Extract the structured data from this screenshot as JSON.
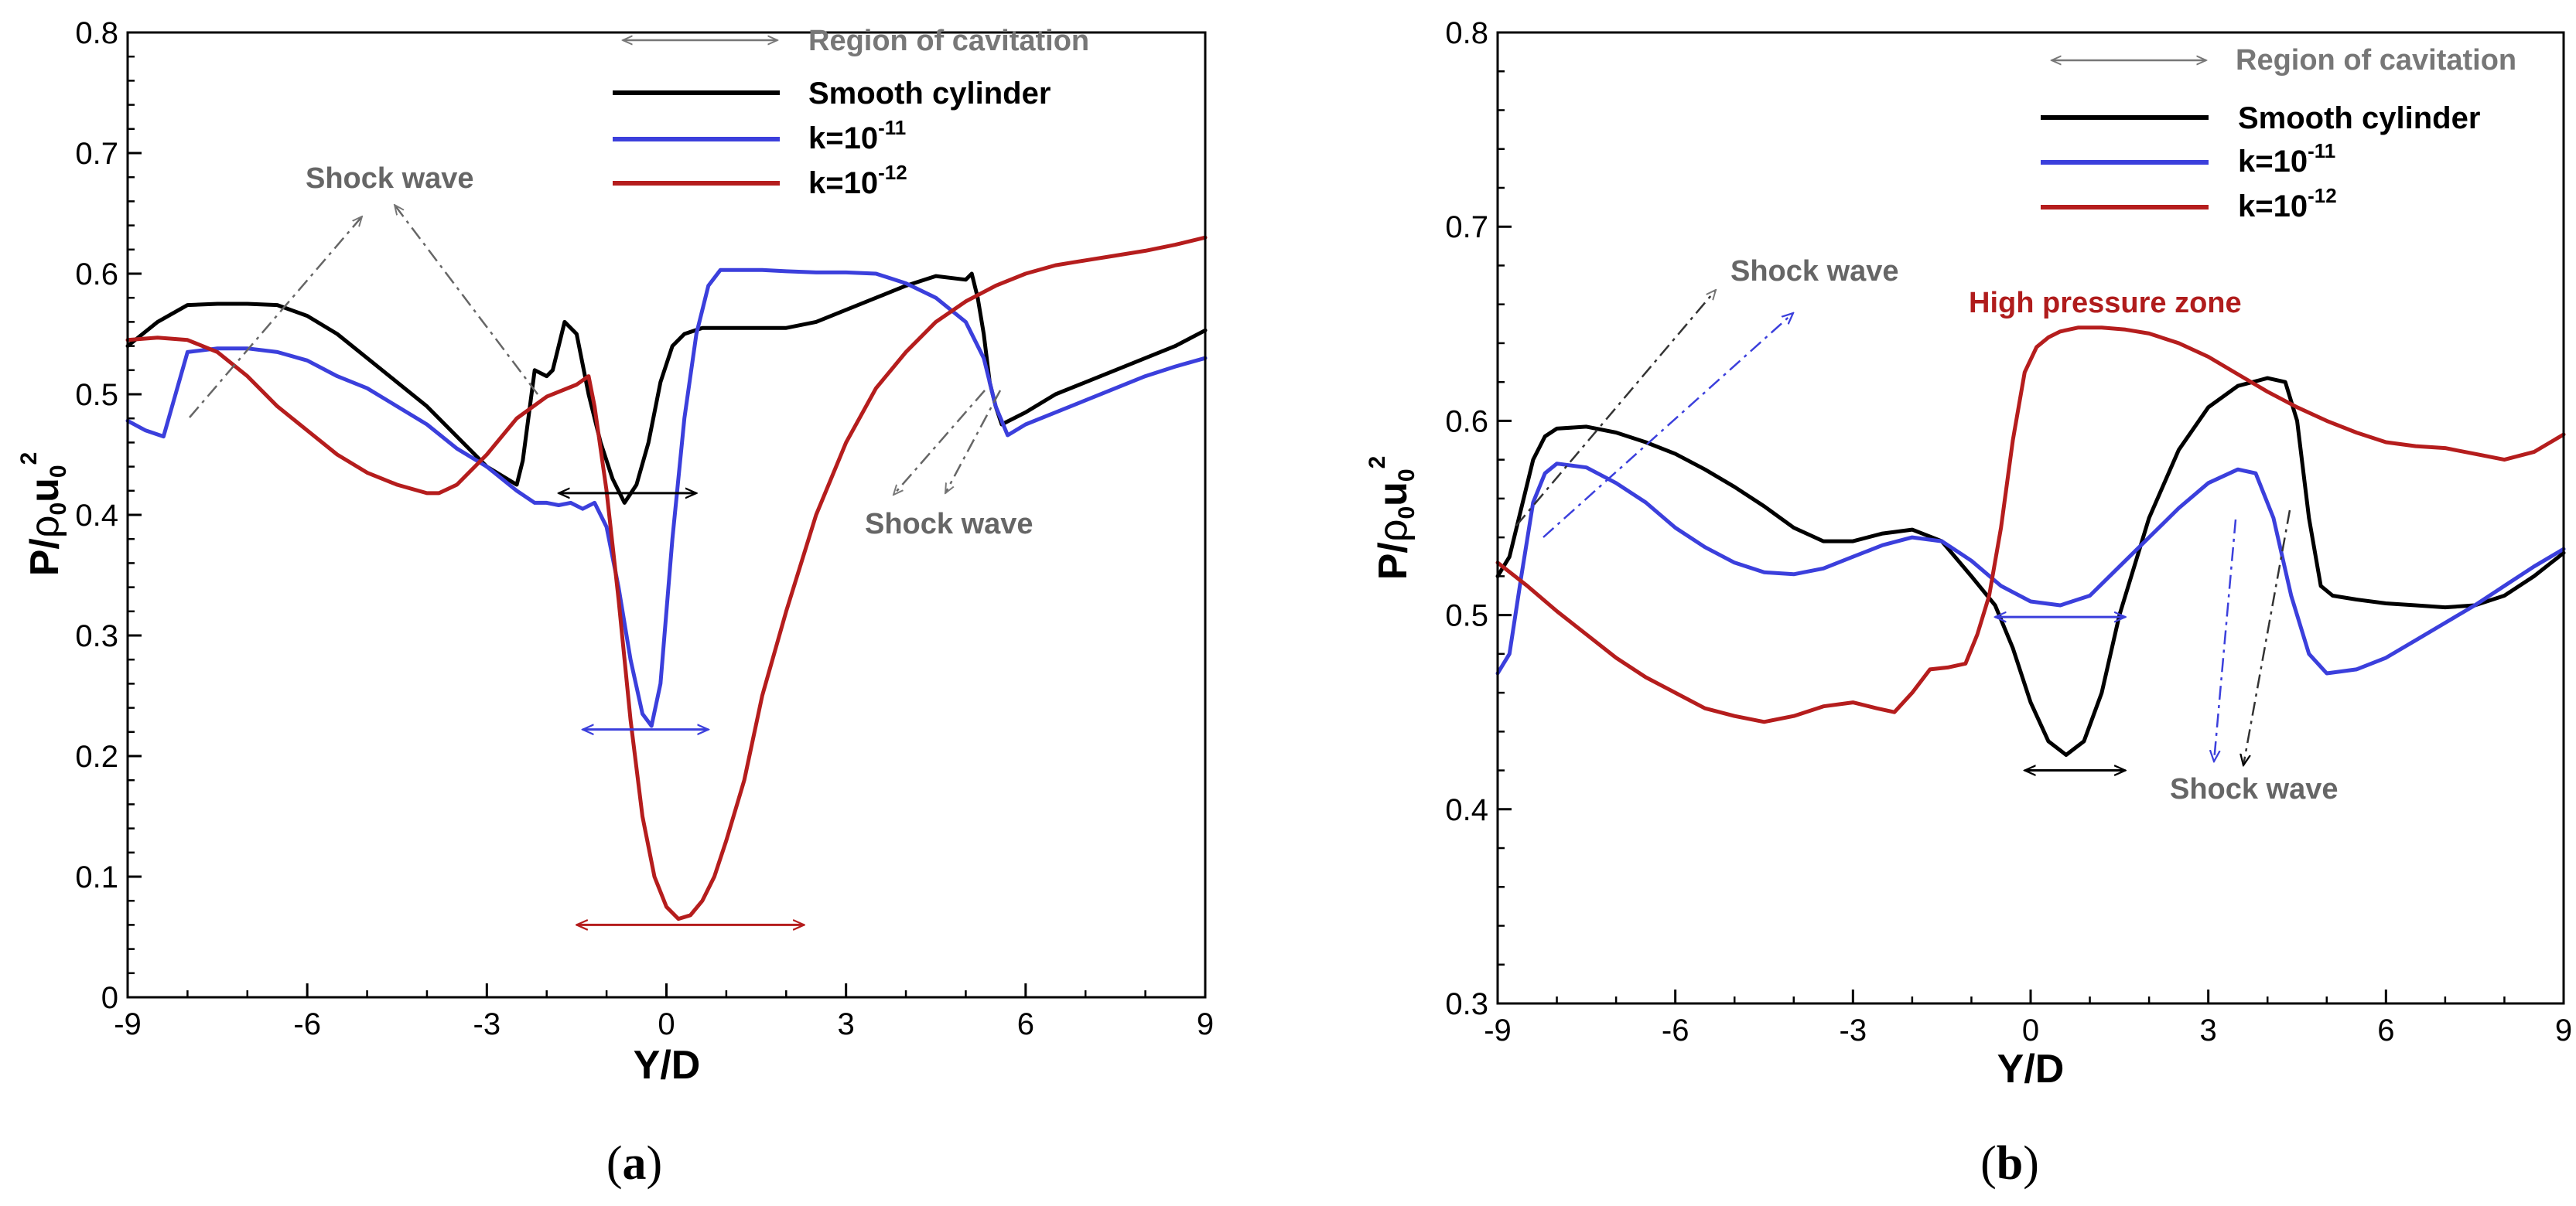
{
  "colors": {
    "smooth": "#000000",
    "k11": "#3b3fdc",
    "k12": "#b51d1d",
    "axis": "#000000",
    "annotation": "#666666",
    "high_pressure": "#b01c1c"
  },
  "chart_data": [
    {
      "type": "line",
      "caption": {
        "open": "(",
        "letter": "a",
        "close": ")"
      },
      "xlabel": "Y/D",
      "ylabel": {
        "base": "P/",
        "rho": "ρ",
        "sub": "0",
        "u": "u",
        "sub2": "0",
        "sup": "2"
      },
      "xlim": [
        -9,
        9
      ],
      "ylim": [
        0,
        0.8
      ],
      "xticks": [
        -9,
        -6,
        -3,
        0,
        3,
        6,
        9
      ],
      "yticks": [
        "0",
        "0.1",
        "0.2",
        "0.3",
        "0.4",
        "0.5",
        "0.6",
        "0.7",
        "0.8"
      ],
      "legend": {
        "title": "Region of cavitation",
        "entries": [
          {
            "label": "Smooth cylinder",
            "sup": ""
          },
          {
            "label": "k=10",
            "sup": "-11"
          },
          {
            "label": "k=10",
            "sup": "-12"
          }
        ]
      },
      "annotations": [
        "Shock wave",
        "Shock wave"
      ],
      "series": [
        {
          "name": "Smooth cylinder",
          "x": [
            -9,
            -8.5,
            -8,
            -7.5,
            -7,
            -6.5,
            -6,
            -5.5,
            -5,
            -4.5,
            -4,
            -3.5,
            -3,
            -2.5,
            -2.4,
            -2.2,
            -2.0,
            -1.9,
            -1.8,
            -1.7,
            -1.5,
            -1.3,
            -1.1,
            -0.9,
            -0.7,
            -0.5,
            -0.3,
            -0.1,
            0.1,
            0.3,
            0.6,
            1.0,
            1.5,
            2,
            2.5,
            3,
            3.5,
            4,
            4.5,
            5.0,
            5.1,
            5.2,
            5.3,
            5.4,
            5.5,
            5.6,
            6,
            6.5,
            7,
            7.5,
            8,
            8.5,
            9
          ],
          "values": [
            0.54,
            0.56,
            0.574,
            0.575,
            0.575,
            0.574,
            0.565,
            0.55,
            0.53,
            0.51,
            0.49,
            0.465,
            0.44,
            0.425,
            0.445,
            0.52,
            0.515,
            0.52,
            0.54,
            0.56,
            0.55,
            0.5,
            0.46,
            0.43,
            0.41,
            0.425,
            0.46,
            0.51,
            0.54,
            0.55,
            0.555,
            0.555,
            0.555,
            0.555,
            0.56,
            0.57,
            0.58,
            0.59,
            0.598,
            0.595,
            0.6,
            0.58,
            0.55,
            0.51,
            0.49,
            0.475,
            0.485,
            0.5,
            0.51,
            0.52,
            0.53,
            0.54,
            0.553
          ]
        },
        {
          "name": "k=10^-11",
          "x": [
            -9,
            -8.7,
            -8.4,
            -8.2,
            -8.0,
            -7.5,
            -7,
            -6.5,
            -6,
            -5.5,
            -5,
            -4.5,
            -4,
            -3.5,
            -3,
            -2.5,
            -2.2,
            -2.0,
            -1.8,
            -1.6,
            -1.4,
            -1.2,
            -1.0,
            -0.8,
            -0.6,
            -0.4,
            -0.25,
            -0.1,
            0.1,
            0.3,
            0.5,
            0.7,
            0.9,
            1.1,
            1.3,
            1.6,
            2,
            2.5,
            3,
            3.5,
            4,
            4.5,
            5.0,
            5.3,
            5.5,
            5.7,
            6,
            6.5,
            7,
            7.5,
            8,
            8.5,
            9
          ],
          "values": [
            0.478,
            0.47,
            0.465,
            0.5,
            0.535,
            0.538,
            0.538,
            0.535,
            0.528,
            0.515,
            0.505,
            0.49,
            0.475,
            0.455,
            0.44,
            0.42,
            0.41,
            0.41,
            0.408,
            0.41,
            0.405,
            0.41,
            0.39,
            0.34,
            0.28,
            0.235,
            0.225,
            0.26,
            0.38,
            0.48,
            0.55,
            0.59,
            0.603,
            0.603,
            0.603,
            0.603,
            0.602,
            0.601,
            0.601,
            0.6,
            0.592,
            0.58,
            0.56,
            0.53,
            0.49,
            0.466,
            0.475,
            0.485,
            0.495,
            0.505,
            0.515,
            0.523,
            0.53
          ]
        },
        {
          "name": "k=10^-12",
          "x": [
            -9,
            -8.5,
            -8,
            -7.5,
            -7,
            -6.5,
            -6,
            -5.5,
            -5,
            -4.5,
            -4,
            -3.8,
            -3.5,
            -3,
            -2.5,
            -2,
            -1.5,
            -1.3,
            -1.2,
            -1.0,
            -0.8,
            -0.6,
            -0.4,
            -0.2,
            0,
            0.2,
            0.4,
            0.6,
            0.8,
            1.0,
            1.3,
            1.6,
            2,
            2.5,
            3,
            3.5,
            4,
            4.5,
            5,
            5.5,
            6,
            6.5,
            7,
            7.5,
            8,
            8.5,
            9
          ],
          "values": [
            0.545,
            0.547,
            0.545,
            0.535,
            0.515,
            0.49,
            0.47,
            0.45,
            0.435,
            0.425,
            0.418,
            0.418,
            0.425,
            0.45,
            0.48,
            0.498,
            0.508,
            0.515,
            0.49,
            0.42,
            0.33,
            0.23,
            0.15,
            0.1,
            0.075,
            0.065,
            0.068,
            0.08,
            0.1,
            0.13,
            0.18,
            0.25,
            0.32,
            0.4,
            0.46,
            0.505,
            0.535,
            0.56,
            0.577,
            0.59,
            0.6,
            0.607,
            0.611,
            0.615,
            0.619,
            0.624,
            0.63
          ]
        }
      ],
      "cavitation_regions": [
        {
          "series": "Smooth cylinder",
          "x": [
            -1.8,
            0.5
          ],
          "y": 0.418
        },
        {
          "series": "k=10^-11",
          "x": [
            -1.4,
            0.7
          ],
          "y": 0.222
        },
        {
          "series": "k=10^-12",
          "x": [
            -1.5,
            2.3
          ],
          "y": 0.06
        }
      ]
    },
    {
      "type": "line",
      "caption": {
        "open": "(",
        "letter": "b",
        "close": ")"
      },
      "xlabel": "Y/D",
      "ylabel": {
        "base": "P/",
        "rho": "ρ",
        "sub": "0",
        "u": "u",
        "sub2": "0",
        "sup": "2"
      },
      "xlim": [
        -9,
        9
      ],
      "ylim": [
        0.3,
        0.8
      ],
      "xticks": [
        -9,
        -6,
        -3,
        0,
        3,
        6,
        9
      ],
      "yticks": [
        "0.3",
        "0.4",
        "0.5",
        "0.6",
        "0.7",
        "0.8"
      ],
      "legend": {
        "title": "Region of cavitation",
        "entries": [
          {
            "label": "Smooth cylinder",
            "sup": ""
          },
          {
            "label": "k=10",
            "sup": "-11"
          },
          {
            "label": "k=10",
            "sup": "-12"
          }
        ]
      },
      "annotations": [
        "Shock wave",
        "Shock wave",
        "High pressure zone"
      ],
      "series": [
        {
          "name": "Smooth cylinder",
          "x": [
            -9,
            -8.8,
            -8.6,
            -8.4,
            -8.2,
            -8.0,
            -7.5,
            -7,
            -6.5,
            -6,
            -5.5,
            -5,
            -4.5,
            -4,
            -3.5,
            -3,
            -2.5,
            -2,
            -1.5,
            -1.0,
            -0.6,
            -0.3,
            0,
            0.3,
            0.6,
            0.9,
            1.2,
            1.5,
            2,
            2.5,
            3,
            3.5,
            4,
            4.3,
            4.5,
            4.7,
            4.9,
            5.1,
            5.5,
            6,
            6.5,
            7,
            7.5,
            8,
            8.5,
            9
          ],
          "values": [
            0.52,
            0.53,
            0.555,
            0.58,
            0.592,
            0.596,
            0.597,
            0.594,
            0.589,
            0.583,
            0.575,
            0.566,
            0.556,
            0.545,
            0.538,
            0.538,
            0.542,
            0.544,
            0.538,
            0.52,
            0.505,
            0.483,
            0.455,
            0.435,
            0.428,
            0.435,
            0.46,
            0.5,
            0.55,
            0.585,
            0.607,
            0.618,
            0.622,
            0.62,
            0.6,
            0.55,
            0.515,
            0.51,
            0.508,
            0.506,
            0.505,
            0.504,
            0.505,
            0.51,
            0.52,
            0.532
          ]
        },
        {
          "name": "k=10^-11",
          "x": [
            -9,
            -8.8,
            -8.6,
            -8.4,
            -8.2,
            -8.0,
            -7.5,
            -7,
            -6.5,
            -6,
            -5.5,
            -5,
            -4.5,
            -4,
            -3.5,
            -3,
            -2.5,
            -2,
            -1.5,
            -1,
            -0.5,
            0,
            0.5,
            1.0,
            1.5,
            2,
            2.5,
            3,
            3.5,
            3.8,
            4.1,
            4.4,
            4.7,
            5.0,
            5.5,
            6,
            6.5,
            7,
            7.5,
            8,
            8.5,
            9
          ],
          "values": [
            0.47,
            0.48,
            0.52,
            0.558,
            0.573,
            0.578,
            0.576,
            0.568,
            0.558,
            0.545,
            0.535,
            0.527,
            0.522,
            0.521,
            0.524,
            0.53,
            0.536,
            0.54,
            0.538,
            0.528,
            0.515,
            0.507,
            0.505,
            0.51,
            0.525,
            0.54,
            0.555,
            0.568,
            0.575,
            0.573,
            0.55,
            0.51,
            0.48,
            0.47,
            0.472,
            0.478,
            0.487,
            0.496,
            0.505,
            0.515,
            0.525,
            0.534
          ]
        },
        {
          "name": "k=10^-12",
          "x": [
            -9,
            -8.5,
            -8,
            -7.5,
            -7,
            -6.5,
            -6,
            -5.5,
            -5,
            -4.5,
            -4,
            -3.5,
            -3,
            -2.6,
            -2.3,
            -2.0,
            -1.7,
            -1.4,
            -1.1,
            -0.9,
            -0.7,
            -0.5,
            -0.3,
            -0.1,
            0.1,
            0.3,
            0.5,
            0.8,
            1.2,
            1.6,
            2,
            2.5,
            3,
            3.5,
            4,
            4.5,
            5,
            5.5,
            6,
            6.5,
            7,
            7.5,
            8,
            8.5,
            9
          ],
          "values": [
            0.527,
            0.515,
            0.502,
            0.49,
            0.478,
            0.468,
            0.46,
            0.452,
            0.448,
            0.445,
            0.448,
            0.453,
            0.455,
            0.452,
            0.45,
            0.46,
            0.472,
            0.473,
            0.475,
            0.49,
            0.51,
            0.545,
            0.59,
            0.625,
            0.638,
            0.643,
            0.646,
            0.648,
            0.648,
            0.647,
            0.645,
            0.64,
            0.633,
            0.624,
            0.615,
            0.607,
            0.6,
            0.594,
            0.589,
            0.587,
            0.586,
            0.583,
            0.58,
            0.584,
            0.593
          ]
        }
      ],
      "cavitation_regions": [
        {
          "series": "Smooth cylinder",
          "x": [
            -0.1,
            1.6
          ],
          "y": 0.42
        },
        {
          "series": "k=10^-11",
          "x": [
            -0.6,
            1.6
          ],
          "y": 0.499
        }
      ]
    }
  ]
}
